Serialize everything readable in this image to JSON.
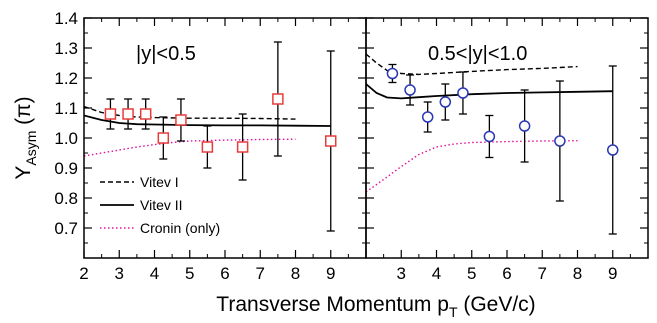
{
  "chart_data": {
    "type": "scatter",
    "xlabel": "Transverse Momentum p",
    "xlabel_sub": "T",
    "xlabel_unit": " (GeV/c)",
    "ylabel": "Y",
    "ylabel_sub": "Asym",
    "ylabel_suffix": " (π)",
    "ylim": [
      0.6,
      1.4
    ],
    "yticks": [
      0.7,
      0.8,
      0.9,
      1.0,
      1.1,
      1.2,
      1.3,
      1.4
    ],
    "ytick_labels": [
      "0.7",
      "0.8",
      "0.9",
      "1.0",
      "1.1",
      "1.2",
      "1.3",
      "1.4"
    ],
    "legend": [
      {
        "label": "Vitev I",
        "style": "dashed",
        "color": "#000000"
      },
      {
        "label": "Vitev II",
        "style": "solid",
        "color": "#000000"
      },
      {
        "label": "Cronin (only)",
        "style": "dotted",
        "color": "#e0119b"
      }
    ],
    "panels": [
      {
        "label": "|y|<0.5",
        "xlim": [
          2,
          10
        ],
        "xticks": [
          2,
          3,
          4,
          5,
          6,
          7,
          8,
          9
        ],
        "xtick_labels": [
          "2",
          "3",
          "4",
          "5",
          "6",
          "7",
          "8",
          "9"
        ],
        "marker": "square",
        "marker_color": "#e83c3c",
        "points": [
          {
            "x": 2.75,
            "y": 1.08,
            "yerr": 0.05
          },
          {
            "x": 3.25,
            "y": 1.08,
            "yerr": 0.05
          },
          {
            "x": 3.75,
            "y": 1.08,
            "yerr": 0.05
          },
          {
            "x": 4.25,
            "y": 1.0,
            "yerr": 0.07
          },
          {
            "x": 4.75,
            "y": 1.06,
            "yerr": 0.07
          },
          {
            "x": 5.5,
            "y": 0.97,
            "yerr": 0.07
          },
          {
            "x": 6.5,
            "y": 0.97,
            "yerr": 0.11
          },
          {
            "x": 7.5,
            "y": 1.13,
            "yerr": 0.19
          },
          {
            "x": 9.0,
            "y": 0.99,
            "yerr": 0.3
          }
        ],
        "curves": {
          "vitev_1": [
            [
              2.0,
              1.105
            ],
            [
              2.5,
              1.085
            ],
            [
              3.0,
              1.075
            ],
            [
              3.5,
              1.07
            ],
            [
              4.0,
              1.068
            ],
            [
              5.0,
              1.066
            ],
            [
              6.0,
              1.066
            ],
            [
              7.0,
              1.065
            ],
            [
              8.0,
              1.063
            ]
          ],
          "vitev_2": [
            [
              2.0,
              1.075
            ],
            [
              2.5,
              1.06
            ],
            [
              3.0,
              1.05
            ],
            [
              3.5,
              1.046
            ],
            [
              4.0,
              1.045
            ],
            [
              5.0,
              1.043
            ],
            [
              6.0,
              1.042
            ],
            [
              7.0,
              1.042
            ],
            [
              8.0,
              1.041
            ],
            [
              9.0,
              1.04
            ]
          ],
          "cronin": [
            [
              2.0,
              0.94
            ],
            [
              2.5,
              0.95
            ],
            [
              3.0,
              0.96
            ],
            [
              3.5,
              0.97
            ],
            [
              4.0,
              0.978
            ],
            [
              4.5,
              0.985
            ],
            [
              5.0,
              0.99
            ],
            [
              6.0,
              0.993
            ],
            [
              7.0,
              0.995
            ],
            [
              8.0,
              0.996
            ]
          ]
        }
      },
      {
        "label": "0.5<|y|<1.0",
        "xlim": [
          2,
          10
        ],
        "xticks": [
          2,
          3,
          4,
          5,
          6,
          7,
          8,
          9
        ],
        "xtick_labels": [
          "",
          "3",
          "4",
          "5",
          "6",
          "7",
          "8",
          "9"
        ],
        "marker": "circle",
        "marker_color": "#2a38b5",
        "points": [
          {
            "x": 2.75,
            "y": 1.215,
            "yerr": 0.03
          },
          {
            "x": 3.25,
            "y": 1.16,
            "yerr": 0.05
          },
          {
            "x": 3.75,
            "y": 1.07,
            "yerr": 0.05
          },
          {
            "x": 4.25,
            "y": 1.12,
            "yerr": 0.06
          },
          {
            "x": 4.75,
            "y": 1.15,
            "yerr": 0.07
          },
          {
            "x": 5.5,
            "y": 1.005,
            "yerr": 0.07
          },
          {
            "x": 6.5,
            "y": 1.04,
            "yerr": 0.12
          },
          {
            "x": 7.5,
            "y": 0.99,
            "yerr": 0.2
          },
          {
            "x": 9.0,
            "y": 0.96,
            "yerr": 0.28
          }
        ],
        "curves": {
          "vitev_1": [
            [
              2.0,
              1.28
            ],
            [
              2.3,
              1.25
            ],
            [
              2.6,
              1.225
            ],
            [
              3.0,
              1.215
            ],
            [
              3.5,
              1.212
            ],
            [
              4.0,
              1.215
            ],
            [
              5.0,
              1.222
            ],
            [
              6.0,
              1.228
            ],
            [
              7.0,
              1.232
            ],
            [
              8.0,
              1.238
            ]
          ],
          "vitev_2": [
            [
              2.0,
              1.18
            ],
            [
              2.3,
              1.15
            ],
            [
              2.6,
              1.135
            ],
            [
              3.0,
              1.132
            ],
            [
              3.5,
              1.136
            ],
            [
              4.0,
              1.14
            ],
            [
              5.0,
              1.146
            ],
            [
              6.0,
              1.15
            ],
            [
              7.0,
              1.152
            ],
            [
              8.0,
              1.154
            ],
            [
              9.0,
              1.156
            ]
          ],
          "cronin": [
            [
              2.0,
              0.82
            ],
            [
              2.3,
              0.845
            ],
            [
              2.6,
              0.87
            ],
            [
              3.0,
              0.905
            ],
            [
              3.5,
              0.945
            ],
            [
              4.0,
              0.97
            ],
            [
              4.5,
              0.98
            ],
            [
              5.0,
              0.985
            ],
            [
              6.0,
              0.988
            ],
            [
              7.0,
              0.99
            ],
            [
              8.0,
              0.991
            ]
          ]
        }
      }
    ]
  }
}
